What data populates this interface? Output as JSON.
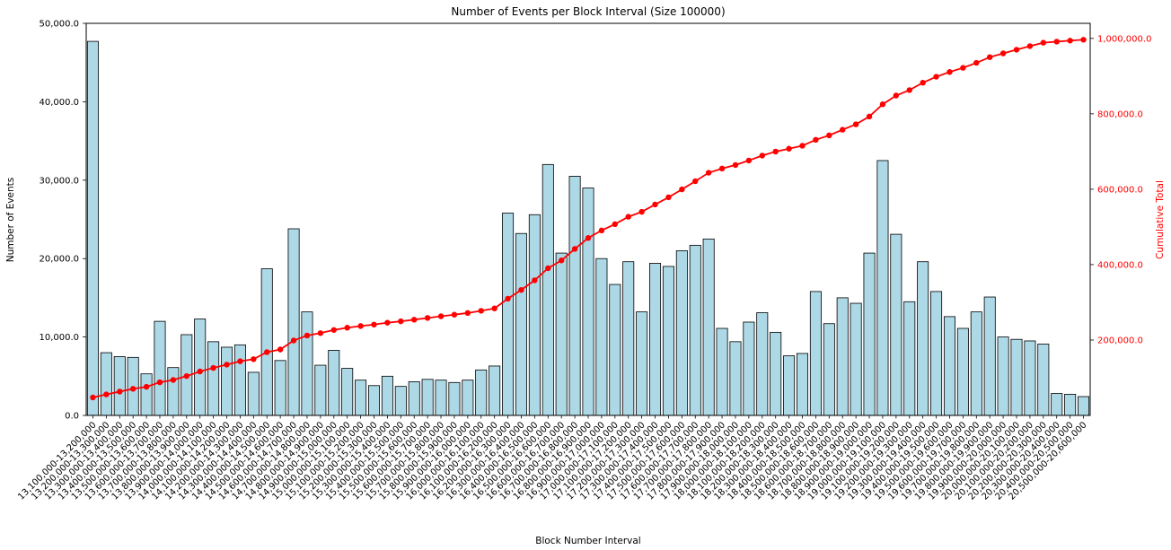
{
  "chart_data": {
    "type": "bar",
    "title": "Number of Events per Block Interval (Size 100000)",
    "xlabel": "Block Number Interval",
    "grid": false,
    "legend_position": "none",
    "categories": [
      "13,100,000-13,200,000",
      "13,200,000-13,300,000",
      "13,300,000-13,400,000",
      "13,400,000-13,500,000",
      "13,500,000-13,600,000",
      "13,600,000-13,700,000",
      "13,700,000-13,800,000",
      "13,800,000-13,900,000",
      "13,900,000-14,000,000",
      "14,000,000-14,100,000",
      "14,100,000-14,200,000",
      "14,200,000-14,300,000",
      "14,300,000-14,400,000",
      "14,400,000-14,500,000",
      "14,500,000-14,600,000",
      "14,600,000-14,700,000",
      "14,700,000-14,800,000",
      "14,800,000-14,900,000",
      "14,900,000-15,000,000",
      "15,000,000-15,100,000",
      "15,100,000-15,200,000",
      "15,200,000-15,300,000",
      "15,300,000-15,400,000",
      "15,400,000-15,500,000",
      "15,500,000-15,600,000",
      "15,600,000-15,700,000",
      "15,700,000-15,800,000",
      "15,800,000-15,900,000",
      "15,900,000-16,000,000",
      "16,000,000-16,100,000",
      "16,100,000-16,200,000",
      "16,200,000-16,300,000",
      "16,300,000-16,400,000",
      "16,400,000-16,500,000",
      "16,500,000-16,600,000",
      "16,600,000-16,700,000",
      "16,700,000-16,800,000",
      "16,800,000-16,900,000",
      "16,900,000-17,000,000",
      "17,000,000-17,100,000",
      "17,100,000-17,200,000",
      "17,200,000-17,300,000",
      "17,300,000-17,400,000",
      "17,400,000-17,500,000",
      "17,500,000-17,600,000",
      "17,600,000-17,700,000",
      "17,700,000-17,800,000",
      "17,800,000-17,900,000",
      "17,900,000-18,000,000",
      "18,000,000-18,100,000",
      "18,100,000-18,200,000",
      "18,200,000-18,300,000",
      "18,300,000-18,400,000",
      "18,400,000-18,500,000",
      "18,500,000-18,600,000",
      "18,600,000-18,700,000",
      "18,700,000-18,800,000",
      "18,800,000-18,900,000",
      "18,900,000-19,000,000",
      "19,000,000-19,100,000",
      "19,100,000-19,200,000",
      "19,200,000-19,300,000",
      "19,300,000-19,400,000",
      "19,400,000-19,500,000",
      "19,500,000-19,600,000",
      "19,600,000-19,700,000",
      "19,700,000-19,800,000",
      "19,800,000-19,900,000",
      "19,900,000-20,000,000",
      "20,000,000-20,100,000",
      "20,100,000-20,200,000",
      "20,200,000-20,300,000",
      "20,300,000-20,400,000",
      "20,400,000-20,500,000",
      "20,500,000-20,600,000"
    ],
    "series": [
      {
        "name": "Number of Events",
        "type": "bar",
        "axis": "left",
        "color": "#ADD8E6",
        "values": [
          47700,
          8000,
          7500,
          7400,
          5300,
          12000,
          6100,
          10300,
          12300,
          9400,
          8700,
          9000,
          5500,
          18700,
          7000,
          23800,
          13200,
          6400,
          8300,
          6000,
          4500,
          3800,
          5000,
          3700,
          4300,
          4600,
          4500,
          4200,
          4500,
          5800,
          6300,
          25800,
          23200,
          25600,
          32000,
          20700,
          30500,
          29000,
          20000,
          16700,
          19600,
          13200,
          19400,
          19000,
          21000,
          21700,
          22500,
          11100,
          9400,
          11900,
          13100,
          10600,
          7600,
          7900,
          15800,
          11700,
          15000,
          14300,
          20700,
          32500,
          23100,
          14500,
          19600,
          15800,
          12600,
          11100,
          13200,
          15100,
          10000,
          9700,
          9500,
          9100,
          2800,
          2700,
          2400
        ]
      },
      {
        "name": "Cumulative Total",
        "type": "line",
        "axis": "right",
        "color": "#FF0000",
        "marker": "circle",
        "values": [
          47700,
          55700,
          63200,
          70600,
          75900,
          87900,
          94000,
          104300,
          116600,
          126000,
          134700,
          143700,
          149200,
          167900,
          174900,
          198700,
          211900,
          218300,
          226600,
          232600,
          237100,
          240900,
          245900,
          249600,
          253900,
          258500,
          263000,
          267200,
          271700,
          277500,
          283800,
          309600,
          332800,
          358400,
          390400,
          411100,
          441600,
          470600,
          490600,
          507300,
          526900,
          540100,
          559500,
          578500,
          599500,
          621200,
          643700,
          654800,
          664200,
          676100,
          689200,
          699800,
          707400,
          715300,
          731100,
          742800,
          757800,
          772100,
          792800,
          825300,
          848400,
          862900,
          882500,
          898300,
          910900,
          922000,
          935200,
          950300,
          960300,
          970000,
          979500,
          988600,
          991400,
          994100,
          996500
        ]
      }
    ],
    "left_axis": {
      "label": "Number of Events",
      "range": [
        0,
        50000
      ],
      "tick_values": [
        0,
        10000,
        20000,
        30000,
        40000,
        50000
      ],
      "tick_labels": [
        "0.0",
        "10,000.0",
        "20,000.0",
        "30,000.0",
        "40,000.0",
        "50,000.0"
      ]
    },
    "right_axis": {
      "label": "Cumulative Total",
      "range": [
        0,
        1040000
      ],
      "tick_values": [
        200000,
        400000,
        600000,
        800000,
        1000000
      ],
      "tick_labels": [
        "200,000.0",
        "400,000.0",
        "600,000.0",
        "800,000.0",
        "1,000,000.0"
      ]
    },
    "style": {
      "bar_edge_color": "#000000",
      "axis_color": "#000000",
      "background": "#FFFFFF"
    }
  }
}
